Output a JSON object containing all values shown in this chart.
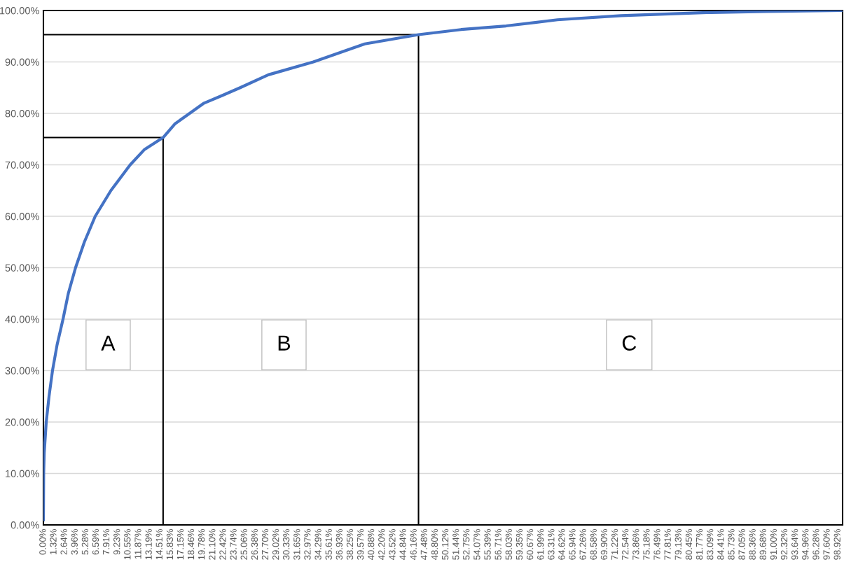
{
  "chart_data": {
    "type": "line",
    "series": [
      {
        "color": "#4472c4",
        "x": [
          0,
          0.03,
          0.1,
          0.35,
          0.7,
          1.13,
          1.7,
          2.44,
          3.1,
          4.0,
          5.1,
          6.45,
          8.4,
          10.8,
          12.6,
          14.9,
          16.4,
          18.2,
          20,
          22.3,
          24.5,
          28,
          33.6,
          40,
          46.7,
          52,
          57.6,
          64,
          71.9,
          82.7,
          90,
          99.5
        ],
        "values": [
          1,
          10,
          14,
          20,
          25,
          30,
          35,
          40,
          45,
          50,
          55,
          60,
          65,
          70,
          73,
          75.3,
          78,
          80,
          82,
          83.5,
          85,
          87.5,
          90,
          93.5,
          95.3,
          96.3,
          97.0,
          98.2,
          99.0,
          99.6,
          99.8,
          100
        ]
      },
      {
        "color": "#000000",
        "x": [
          0,
          14.9,
          14.9
        ],
        "values": [
          75.3,
          75.3,
          0
        ]
      },
      {
        "color": "#000000",
        "x": [
          0,
          46.7,
          46.7
        ],
        "values": [
          95.3,
          95.3,
          0
        ]
      }
    ],
    "annotations": [
      "A",
      "B",
      "C"
    ],
    "xlim": [
      0,
      99.5
    ],
    "ylim": [
      0,
      100
    ],
    "yticks": [
      {
        "value": 0,
        "label": "0.00%"
      },
      {
        "value": 10,
        "label": "10.00%"
      },
      {
        "value": 20,
        "label": "20.00%"
      },
      {
        "value": 30,
        "label": "30.00%"
      },
      {
        "value": 40,
        "label": "40.00%"
      },
      {
        "value": 50,
        "label": "50.00%"
      },
      {
        "value": 60,
        "label": "60.00%"
      },
      {
        "value": 70,
        "label": "70.00%"
      },
      {
        "value": 80,
        "label": "80.00%"
      },
      {
        "value": 90,
        "label": "90.00%"
      },
      {
        "value": 100,
        "label": "100.00%"
      }
    ],
    "xticks": [
      {
        "value": 0,
        "label": "0.00%"
      },
      {
        "value": 1.32,
        "label": "1.32%"
      },
      {
        "value": 2.64,
        "label": "2.64%"
      },
      {
        "value": 3.96,
        "label": "3.96%"
      },
      {
        "value": 5.28,
        "label": "5.28%"
      },
      {
        "value": 6.59,
        "label": "6.59%"
      },
      {
        "value": 7.91,
        "label": "7.91%"
      },
      {
        "value": 9.23,
        "label": "9.23%"
      },
      {
        "value": 10.55,
        "label": "10.55%"
      },
      {
        "value": 11.87,
        "label": "11.87%"
      },
      {
        "value": 13.19,
        "label": "13.19%"
      },
      {
        "value": 14.51,
        "label": "14.51%"
      },
      {
        "value": 15.83,
        "label": "15.83%"
      },
      {
        "value": 17.15,
        "label": "17.15%"
      },
      {
        "value": 18.46,
        "label": "18.46%"
      },
      {
        "value": 19.78,
        "label": "19.78%"
      },
      {
        "value": 21.1,
        "label": "21.10%"
      },
      {
        "value": 22.42,
        "label": "22.42%"
      },
      {
        "value": 23.74,
        "label": "23.74%"
      },
      {
        "value": 25.06,
        "label": "25.06%"
      },
      {
        "value": 26.38,
        "label": "26.38%"
      },
      {
        "value": 27.7,
        "label": "27.70%"
      },
      {
        "value": 29.02,
        "label": "29.02%"
      },
      {
        "value": 30.33,
        "label": "30.33%"
      },
      {
        "value": 31.65,
        "label": "31.65%"
      },
      {
        "value": 32.97,
        "label": "32.97%"
      },
      {
        "value": 34.29,
        "label": "34.29%"
      },
      {
        "value": 35.61,
        "label": "35.61%"
      },
      {
        "value": 36.93,
        "label": "36.93%"
      },
      {
        "value": 38.25,
        "label": "38.25%"
      },
      {
        "value": 39.57,
        "label": "39.57%"
      },
      {
        "value": 40.88,
        "label": "40.88%"
      },
      {
        "value": 42.2,
        "label": "42.20%"
      },
      {
        "value": 43.52,
        "label": "43.52%"
      },
      {
        "value": 44.84,
        "label": "44.84%"
      },
      {
        "value": 46.16,
        "label": "46.16%"
      },
      {
        "value": 47.48,
        "label": "47.48%"
      },
      {
        "value": 48.8,
        "label": "48.80%"
      },
      {
        "value": 50.12,
        "label": "50.12%"
      },
      {
        "value": 51.44,
        "label": "51.44%"
      },
      {
        "value": 52.75,
        "label": "52.75%"
      },
      {
        "value": 54.07,
        "label": "54.07%"
      },
      {
        "value": 55.39,
        "label": "55.39%"
      },
      {
        "value": 56.71,
        "label": "56.71%"
      },
      {
        "value": 58.03,
        "label": "58.03%"
      },
      {
        "value": 59.35,
        "label": "59.35%"
      },
      {
        "value": 60.67,
        "label": "60.67%"
      },
      {
        "value": 61.99,
        "label": "61.99%"
      },
      {
        "value": 63.31,
        "label": "63.31%"
      },
      {
        "value": 64.62,
        "label": "64.62%"
      },
      {
        "value": 65.94,
        "label": "65.94%"
      },
      {
        "value": 67.26,
        "label": "67.26%"
      },
      {
        "value": 68.58,
        "label": "68.58%"
      },
      {
        "value": 69.9,
        "label": "69.90%"
      },
      {
        "value": 71.22,
        "label": "71.22%"
      },
      {
        "value": 72.54,
        "label": "72.54%"
      },
      {
        "value": 73.86,
        "label": "73.86%"
      },
      {
        "value": 75.18,
        "label": "75.18%"
      },
      {
        "value": 76.49,
        "label": "76.49%"
      },
      {
        "value": 77.81,
        "label": "77.81%"
      },
      {
        "value": 79.13,
        "label": "79.13%"
      },
      {
        "value": 80.45,
        "label": "80.45%"
      },
      {
        "value": 81.77,
        "label": "81.77%"
      },
      {
        "value": 83.09,
        "label": "83.09%"
      },
      {
        "value": 84.41,
        "label": "84.41%"
      },
      {
        "value": 85.73,
        "label": "85.73%"
      },
      {
        "value": 87.05,
        "label": "87.05%"
      },
      {
        "value": 88.36,
        "label": "88.36%"
      },
      {
        "value": 89.68,
        "label": "89.68%"
      },
      {
        "value": 91.0,
        "label": "91.00%"
      },
      {
        "value": 92.32,
        "label": "92.32%"
      },
      {
        "value": 93.64,
        "label": "93.64%"
      },
      {
        "value": 94.96,
        "label": "94.96%"
      },
      {
        "value": 96.28,
        "label": "96.28%"
      },
      {
        "value": 97.6,
        "label": "97.60%"
      },
      {
        "value": 98.92,
        "label": "98.92%"
      }
    ],
    "grid": "y"
  }
}
